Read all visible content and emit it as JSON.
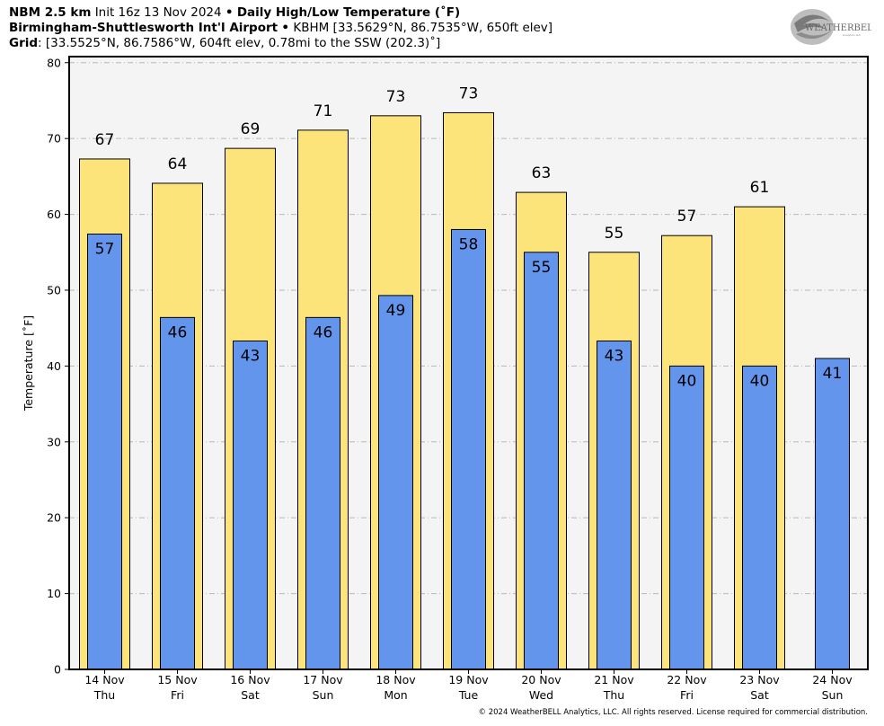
{
  "header": {
    "line1_model": "NBM 2.5 km",
    "line1_init": "Init 16z 13 Nov 2024",
    "bullet": "•",
    "line1_title": "Daily High/Low Temperature (˚F)",
    "line2_station": "Birmingham-Shuttlesworth Int'l Airport",
    "line2_info": "KBHM [33.5629°N, 86.7535°W, 650ft elev]",
    "line3_label": "Grid",
    "line3_info": ": [33.5525°N, 86.7586°W, 604ft elev, 0.78mi to the SSW (202.3)˚]"
  },
  "logo": {
    "text": "WEATHERBELL",
    "subtext": "Analytics LLC"
  },
  "copyright": "© 2024 WeatherBELL Analytics, LLC. All rights reserved. License required for commercial distribution.",
  "colors": {
    "high": "#fde47a",
    "low": "#6495ed",
    "plot_bg": "#f4f4f4",
    "grid": "#b8b8b8"
  },
  "chart_data": {
    "type": "bar",
    "title": "Daily High/Low Temperature (˚F)",
    "ylabel": "Temperature [˚F]",
    "ylim": [
      0,
      80
    ],
    "yticks": [
      0,
      10,
      20,
      30,
      40,
      50,
      60,
      70,
      80
    ],
    "grid": true,
    "categories": [
      {
        "date": "14 Nov",
        "day": "Thu"
      },
      {
        "date": "15 Nov",
        "day": "Fri"
      },
      {
        "date": "16 Nov",
        "day": "Sat"
      },
      {
        "date": "17 Nov",
        "day": "Sun"
      },
      {
        "date": "18 Nov",
        "day": "Mon"
      },
      {
        "date": "19 Nov",
        "day": "Tue"
      },
      {
        "date": "20 Nov",
        "day": "Wed"
      },
      {
        "date": "21 Nov",
        "day": "Thu"
      },
      {
        "date": "22 Nov",
        "day": "Fri"
      },
      {
        "date": "23 Nov",
        "day": "Sat"
      },
      {
        "date": "24 Nov",
        "day": "Sun"
      }
    ],
    "series": [
      {
        "key": "high",
        "values": [
          67.3,
          64.1,
          68.7,
          71.1,
          73.0,
          73.4,
          62.9,
          55.0,
          57.2,
          61.0,
          null
        ],
        "labels": [
          "67",
          "64",
          "69",
          "71",
          "73",
          "73",
          "63",
          "55",
          "57",
          "61",
          ""
        ]
      },
      {
        "key": "low",
        "values": [
          57.4,
          46.4,
          43.3,
          46.4,
          49.3,
          58.0,
          55.0,
          43.3,
          40.0,
          40.0,
          41.0
        ],
        "labels": [
          "57",
          "46",
          "43",
          "46",
          "49",
          "58",
          "55",
          "43",
          "40",
          "40",
          "41"
        ]
      }
    ]
  }
}
